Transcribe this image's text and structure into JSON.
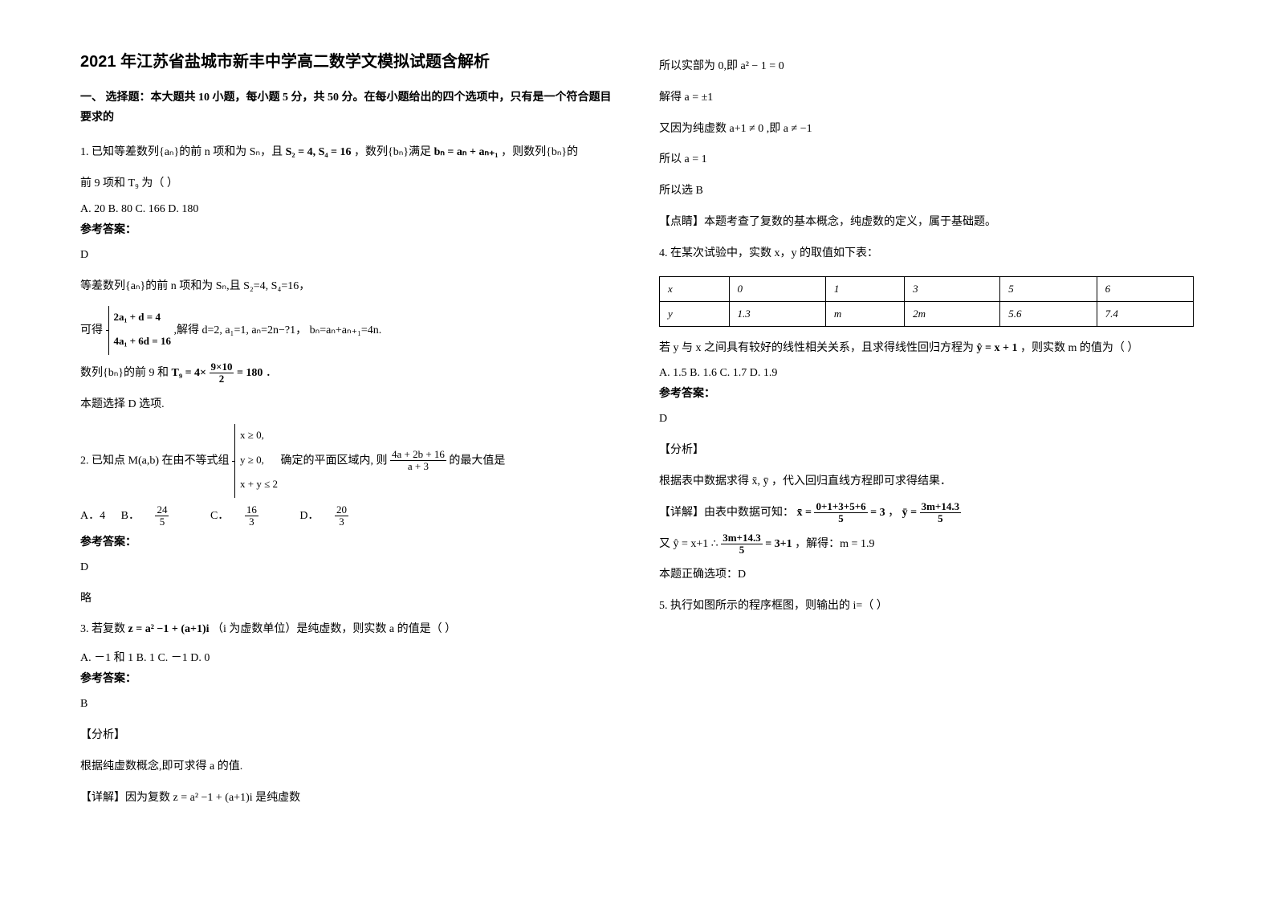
{
  "title": "2021 年江苏省盐城市新丰中学高二数学文模拟试题含解析",
  "section1": "一、 选择题：本大题共 10 小题，每小题 5 分，共 50 分。在每小题给出的四个选项中，只有是一个符合题目要求的",
  "q1": {
    "stem_a": "1. 已知等差数列{aₙ}的前 n 项和为 Sₙ，且",
    "formula1": "S₂ = 4, S₄ = 16",
    "stem_b": "，数列{bₙ}满足",
    "formula2": "bₙ = aₙ + aₙ₊₁",
    "stem_c": "，则数列{bₙ}的",
    "stem2": "前 9 项和 T₉ 为（  ）",
    "opts": "A. 20   B. 80    C. 166  D. 180",
    "ans_label": "参考答案：",
    "ans_letter": "D",
    "sol1": "等差数列{aₙ}的前 n 项和为 Sₙ,且 S₂=4, S₄=16，",
    "sol2a": "可得",
    "brace1": "2a₁ + d = 4",
    "brace2": "4a₁ + 6d = 16",
    "sol2b": ",解得 d=2, a₁=1, aₙ=2n−?1， bₙ=aₙ+aₙ₊₁=4n.",
    "sol3a": "数列{bₙ}的前 9 和",
    "T9eq": "T₉ = 4×",
    "T9num": "9×10",
    "T9den": "2",
    "T9end": "= 180",
    "sol4": "本题选择 D 选项."
  },
  "q2": {
    "stem_a": "2. 已知点 M(a,b) 在由不等式组",
    "b1": "x ≥ 0,",
    "b2": "y ≥ 0,",
    "b3": "x + y ≤ 2",
    "stem_b": "确定的平面区域内, 则",
    "fnum": "4a + 2b + 16",
    "fden": "a + 3",
    "stem_c": "的最大值是",
    "optA": "A．4",
    "optB": "B．",
    "bNum": "24",
    "bDen": "5",
    "optC": "C．",
    "cNum": "16",
    "cDen": "3",
    "optD": "D．",
    "dNum": "20",
    "dDen": "3",
    "ans_label": "参考答案：",
    "ans_letter": "D",
    "sol": "略"
  },
  "q3": {
    "stem_a": "3. 若复数",
    "formula": "z = a² −1 + (a+1)i",
    "stem_b": "（i 为虚数单位）是纯虚数，则实数 a 的值是（       ）",
    "opts": "A. －1 和 1       B. 1     C. －1   D. 0",
    "ans_label": "参考答案：",
    "ans_letter": "B",
    "fx": "【分析】",
    "sol1": "根据纯虚数概念,即可求得 a 的值.",
    "xj": "【详解】因为复数 z = a² −1 + (a+1)i 是纯虚数"
  },
  "col2": {
    "l1": "所以实部为 0,即 a² − 1 = 0",
    "l2": "解得 a = ±1",
    "l3": "又因为纯虚数 a+1 ≠ 0 ,即 a ≠ −1",
    "l4": "所以 a = 1",
    "l5": "所以选 B",
    "l6": "【点睛】本题考查了复数的基本概念，纯虚数的定义，属于基础题。"
  },
  "q4": {
    "stem": "4. 在某次试验中，实数 x，y 的取值如下表：",
    "table": {
      "row1": [
        "x",
        "0",
        "1",
        "3",
        "5",
        "6"
      ],
      "row2": [
        "y",
        "1.3",
        "m",
        "2m",
        "5.6",
        "7.4"
      ]
    },
    "stem2a": "若 y 与 x 之间具有较好的线性相关关系，且求得线性回归方程为",
    "yhat": "ŷ = x + 1",
    "stem2b": "，则实数 m 的值为（    ）",
    "opts": "A. 1.5   B. 1.6    C. 1.7   D. 1.9",
    "ans_label": "参考答案：",
    "ans_letter": "D",
    "fx": "【分析】",
    "sol1": "根据表中数据求得 x̄, ȳ ，代入回归直线方程即可求得结果．",
    "xj": "【详解】由表中数据可知：",
    "xbar_a": "x̄ =",
    "xbar_num": "0+1+3+5+6",
    "xbar_den": "5",
    "xbar_eq": "= 3",
    "ybar_a": "ȳ =",
    "ybar_num": "3m+14.3",
    "ybar_den": "5",
    "l2a": "又 ŷ = x+1       ∴",
    "l2num": "3m+14.3",
    "l2den": "5",
    "l2eq": "= 3+1",
    "l2b": "，解得：m = 1.9",
    "sol3": "本题正确选项：D"
  },
  "q5": {
    "stem": "5. 执行如图所示的程序框图，则输出的 i=（         ）"
  },
  "colors": {
    "text": "#000000",
    "bg": "#ffffff",
    "border": "#000000"
  }
}
